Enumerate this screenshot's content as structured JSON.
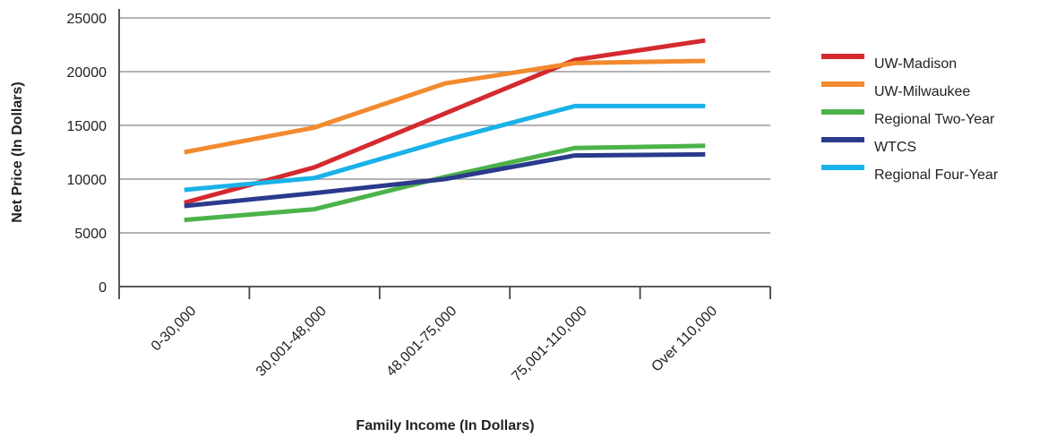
{
  "chart_data": {
    "type": "line",
    "title": "",
    "xlabel": "Family Income (In Dollars)",
    "ylabel": "Net Price (In Dollars)",
    "categories": [
      "0-30,000",
      "30,001-48,000",
      "48,001-75,000",
      "75,001-110,000",
      "Over 110,000"
    ],
    "ylim": [
      0,
      25000
    ],
    "yticks": [
      "0",
      "5000",
      "10000",
      "15000",
      "20000",
      "25000"
    ],
    "grid": true,
    "legend_position": "right",
    "series": [
      {
        "name": "UW-Madison",
        "color": "#d42a2f",
        "values": [
          7800,
          11100,
          16100,
          21100,
          22900
        ]
      },
      {
        "name": "UW-Milwaukee",
        "color": "#f28a2e",
        "values": [
          12500,
          14800,
          18900,
          20800,
          21000
        ]
      },
      {
        "name": "Regional Two-Year",
        "color": "#4cb24a",
        "values": [
          6200,
          7200,
          10200,
          12900,
          13100
        ]
      },
      {
        "name": "WTCS",
        "color": "#2b3a8c",
        "values": [
          7500,
          8700,
          10000,
          12200,
          12300
        ]
      },
      {
        "name": "Regional Four-Year",
        "color": "#1ab2e8",
        "values": [
          9000,
          10100,
          13600,
          16800,
          16800
        ]
      }
    ]
  }
}
